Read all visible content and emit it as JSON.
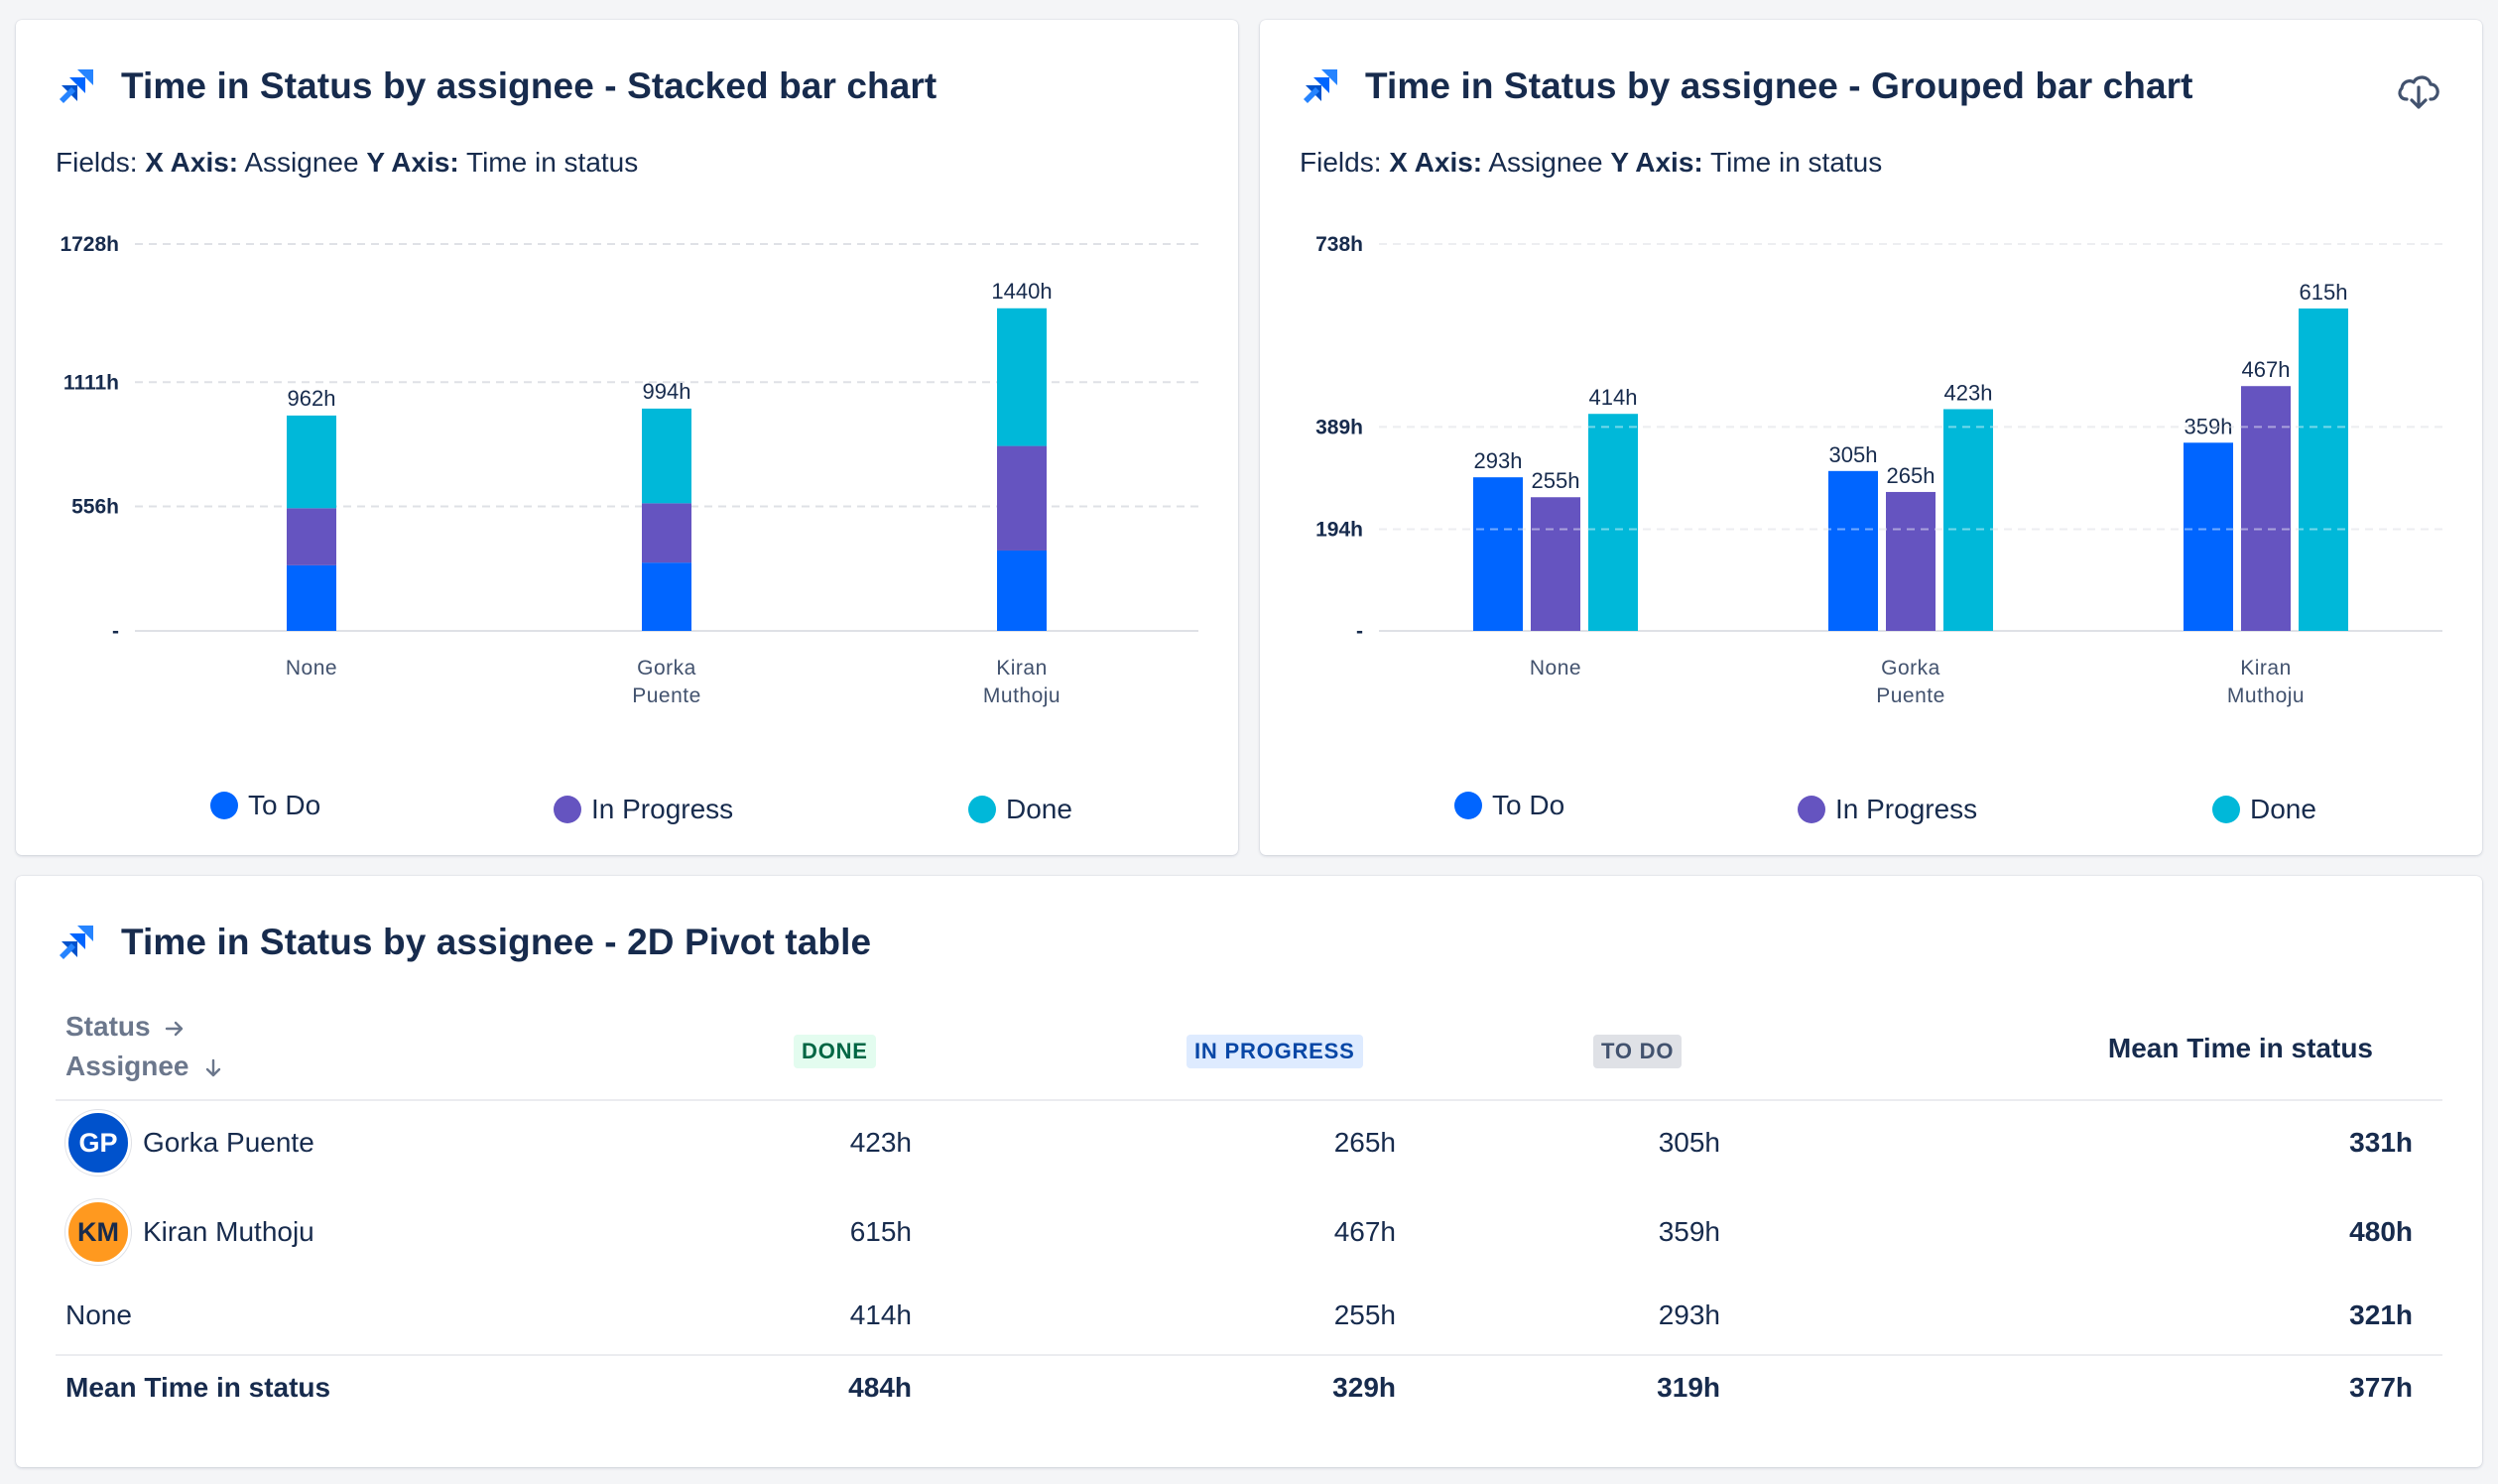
{
  "colors": {
    "todo": "#0065ff",
    "in_progress": "#6554c0",
    "done": "#00b8d9",
    "grid": "#dfe1e6",
    "axis_text": "#172b4d"
  },
  "stacked_card": {
    "title": "Time in Status by assignee - Stacked bar chart",
    "fields_prefix": "Fields:",
    "x_axis_label": "X Axis:",
    "x_axis_value": "Assignee",
    "y_axis_label": "Y Axis:",
    "y_axis_value": "Time in status",
    "icon": "jira-logo-icon"
  },
  "grouped_card": {
    "title": "Time in Status by assignee - Grouped bar chart",
    "fields_prefix": "Fields:",
    "x_axis_label": "X Axis:",
    "x_axis_value": "Assignee",
    "y_axis_label": "Y Axis:",
    "y_axis_value": "Time in status",
    "icon": "jira-logo-icon",
    "download_icon": "cloud-download-icon"
  },
  "legend": {
    "todo": "To Do",
    "in_progress": "In Progress",
    "done": "Done"
  },
  "chart_data": [
    {
      "type": "bar",
      "stacked": true,
      "categories": [
        [
          "None"
        ],
        [
          "Gorka",
          "Puente"
        ],
        [
          "Kiran",
          "Muthoju"
        ]
      ],
      "series": [
        {
          "name": "To Do",
          "values": [
            293,
            305,
            359
          ]
        },
        {
          "name": "In Progress",
          "values": [
            255,
            265,
            467
          ]
        },
        {
          "name": "Done",
          "values": [
            414,
            423,
            615
          ]
        }
      ],
      "totals": [
        "962h",
        "994h",
        "1440h"
      ],
      "ylim": [
        0,
        1728
      ],
      "yticks": [
        {
          "value": 0,
          "label": "-"
        },
        {
          "value": 556,
          "label": "556h"
        },
        {
          "value": 1111,
          "label": "1111h"
        },
        {
          "value": 1728,
          "label": "1728h"
        }
      ],
      "legend_placement": "bottom",
      "grid": true
    },
    {
      "type": "bar",
      "stacked": false,
      "categories": [
        [
          "None"
        ],
        [
          "Gorka",
          "Puente"
        ],
        [
          "Kiran",
          "Muthoju"
        ]
      ],
      "series": [
        {
          "name": "To Do",
          "values": [
            293,
            305,
            359
          ],
          "labels": [
            "293h",
            "305h",
            "359h"
          ]
        },
        {
          "name": "In Progress",
          "values": [
            255,
            265,
            467
          ],
          "labels": [
            "255h",
            "265h",
            "467h"
          ]
        },
        {
          "name": "Done",
          "values": [
            414,
            423,
            615
          ],
          "labels": [
            "414h",
            "423h",
            "615h"
          ]
        }
      ],
      "ylim": [
        0,
        738
      ],
      "yticks": [
        {
          "value": 0,
          "label": "-"
        },
        {
          "value": 194,
          "label": "194h"
        },
        {
          "value": 389,
          "label": "389h"
        },
        {
          "value": 738,
          "label": "738h"
        }
      ],
      "legend_placement": "bottom",
      "grid": true
    }
  ],
  "pivot": {
    "title": "Time in Status by assignee - 2D Pivot table",
    "icon": "jira-logo-icon",
    "status_header": "Status",
    "assignee_header": "Assignee",
    "columns": {
      "done": "DONE",
      "in_progress": "IN PROGRESS",
      "todo": "TO DO",
      "mean": "Mean Time in status"
    },
    "rows": [
      {
        "initials": "GP",
        "avatar_color": "#0052cc",
        "name": "Gorka Puente",
        "done": "423h",
        "in_progress": "265h",
        "todo": "305h",
        "mean": "331h"
      },
      {
        "initials": "KM",
        "avatar_color": "#ff991f",
        "name": "Kiran Muthoju",
        "done": "615h",
        "in_progress": "467h",
        "todo": "359h",
        "mean": "480h"
      },
      {
        "initials": "",
        "avatar_color": "",
        "name": "None",
        "done": "414h",
        "in_progress": "255h",
        "todo": "293h",
        "mean": "321h"
      }
    ],
    "footer": {
      "name": "Mean Time in status",
      "done": "484h",
      "in_progress": "329h",
      "todo": "319h",
      "mean": "377h"
    }
  }
}
